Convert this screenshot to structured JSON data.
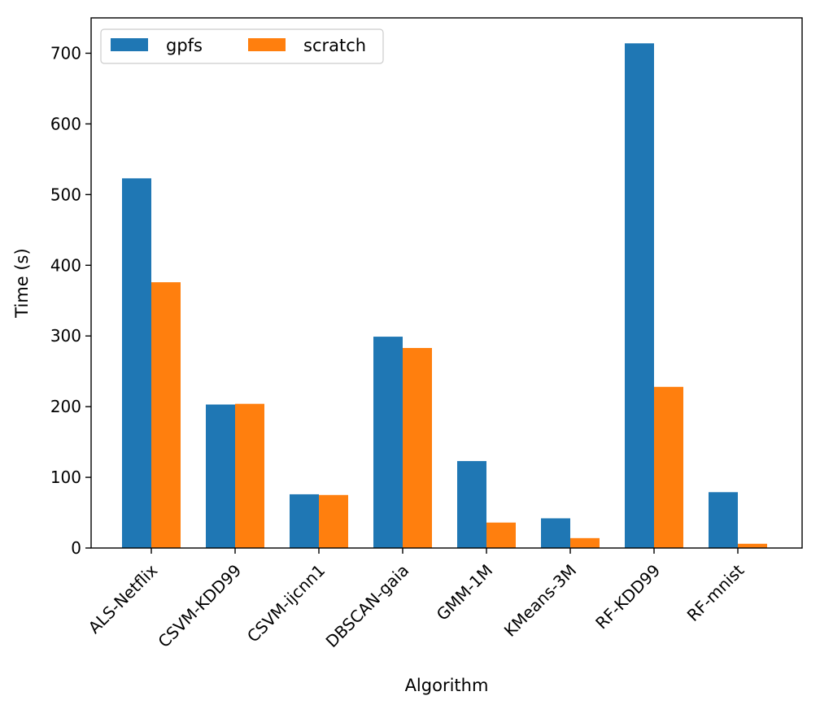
{
  "chart_data": {
    "type": "bar",
    "title": "",
    "xlabel": "Algorithm",
    "ylabel": "Time (s)",
    "categories": [
      "ALS-Netflix",
      "CSVM-KDD99",
      "CSVM-ijcnn1",
      "DBSCAN-gaia",
      "GMM-1M",
      "KMeans-3M",
      "RF-KDD99",
      "RF-mnist"
    ],
    "series": [
      {
        "name": "gpfs",
        "color": "#1f77b4",
        "values": [
          523,
          203,
          76,
          299,
          123,
          42,
          714,
          79
        ]
      },
      {
        "name": "scratch",
        "color": "#ff7f0e",
        "values": [
          376,
          204,
          75,
          283,
          36,
          14,
          228,
          6
        ]
      }
    ],
    "ylim": [
      0,
      750
    ],
    "yticks": [
      0,
      100,
      200,
      300,
      400,
      500,
      600,
      700
    ],
    "grid": false,
    "legend": {
      "placement": "top-left",
      "columns": 2
    }
  }
}
